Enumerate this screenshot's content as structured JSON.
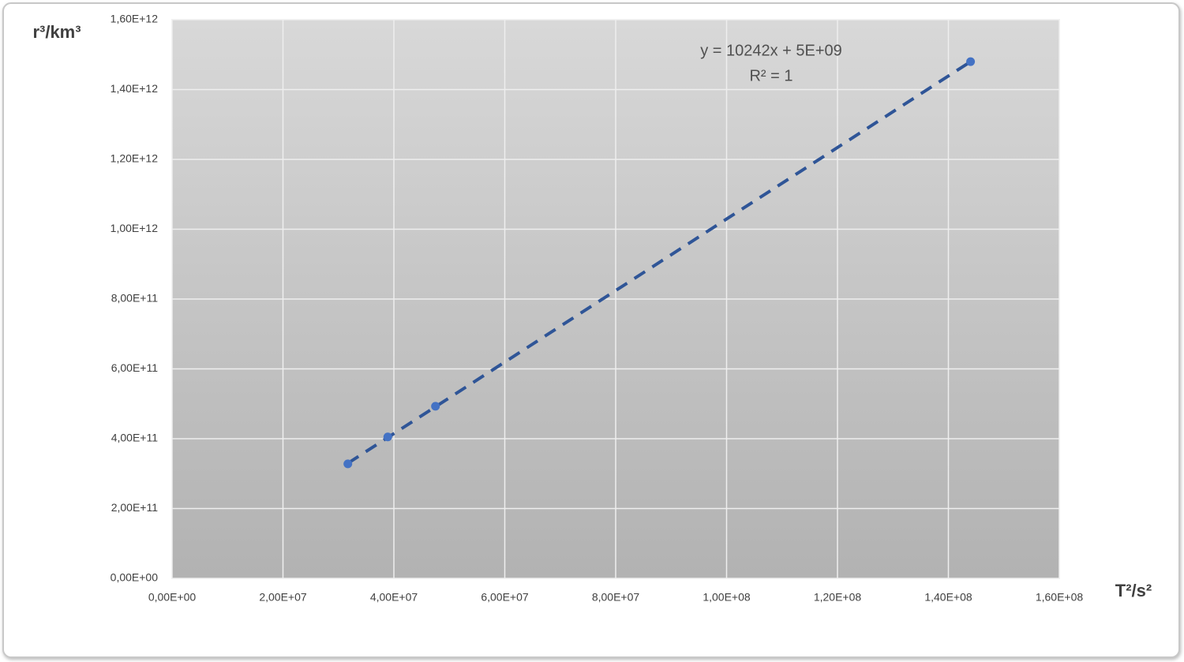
{
  "chart_data": {
    "type": "scatter",
    "x": [
      31700000,
      38900000,
      47500000,
      144000000
    ],
    "values": [
      328000000000,
      405000000000,
      493000000000,
      1480000000000
    ],
    "color": "#4472c4",
    "xlim": [
      0,
      160000000
    ],
    "ylim": [
      0,
      1600000000000
    ],
    "xticks": [
      {
        "value": 0,
        "label": "0,00E+00"
      },
      {
        "value": 20000000,
        "label": "2,00E+07"
      },
      {
        "value": 40000000,
        "label": "4,00E+07"
      },
      {
        "value": 60000000,
        "label": "6,00E+07"
      },
      {
        "value": 80000000,
        "label": "8,00E+07"
      },
      {
        "value": 100000000,
        "label": "1,00E+08"
      },
      {
        "value": 120000000,
        "label": "1,20E+08"
      },
      {
        "value": 140000000,
        "label": "1,40E+08"
      },
      {
        "value": 160000000,
        "label": "1,60E+08"
      }
    ],
    "yticks": [
      {
        "value": 0,
        "label": "0,00E+00"
      },
      {
        "value": 200000000000,
        "label": "2,00E+11"
      },
      {
        "value": 400000000000,
        "label": "4,00E+11"
      },
      {
        "value": 600000000000,
        "label": "6,00E+11"
      },
      {
        "value": 800000000000,
        "label": "8,00E+11"
      },
      {
        "value": 1000000000000,
        "label": "1,00E+12"
      },
      {
        "value": 1200000000000,
        "label": "1,20E+12"
      },
      {
        "value": 1400000000000,
        "label": "1,40E+12"
      },
      {
        "value": 1600000000000,
        "label": "1,60E+12"
      }
    ],
    "grid": true,
    "x_label": "T²/s²",
    "y_label": "r³/km³",
    "trendline": {
      "equation": "y = 10242x + 5E+09",
      "r_squared": "R² = 1",
      "slope": 10242,
      "intercept": 5000000000,
      "color": "#2f5597",
      "dashed": true
    }
  }
}
